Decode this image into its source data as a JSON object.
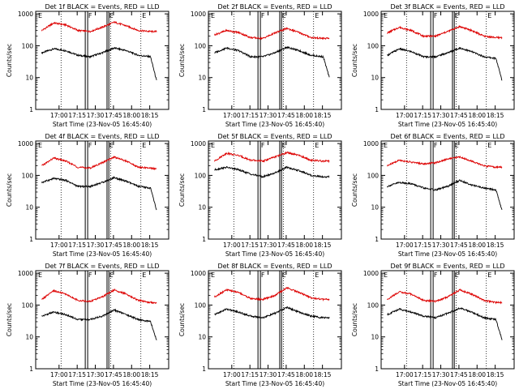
{
  "figure": {
    "x_axis_label": "Start Time (23-Nov-05 16:45:40)",
    "y_axis_label": "Counts/sec",
    "x_tick_labels": [
      "17:00",
      "17:15",
      "17:30",
      "17:45",
      "18:00",
      "18:15"
    ],
    "y_tick_labels": [
      "1",
      "10",
      "100",
      "1000"
    ],
    "flag_labels": [
      "E",
      "F",
      "E",
      "E"
    ],
    "colors": {
      "events": "#000000",
      "lld": "#dd0000",
      "axes": "#000000",
      "background": "#ffffff"
    },
    "grid": false,
    "y_scale": "log",
    "x_tick_offsets_minutes": [
      14.33,
      29.33,
      44.33,
      59.33,
      74.33,
      89.33
    ],
    "time_range_minutes": [
      -5,
      105
    ],
    "ylim": [
      1,
      1200
    ],
    "dotted_markers_minutes": [
      16,
      57,
      82
    ],
    "vertical_band_edges_minutes": [
      [
        36,
        38
      ],
      [
        54,
        55.5
      ]
    ]
  },
  "chart_data": [
    {
      "type": "line",
      "title": "Det 1f BLACK = Events, RED = LLD",
      "x_minutes": [
        0,
        10,
        20,
        30,
        40,
        50,
        60,
        70,
        80,
        90,
        95
      ],
      "series": [
        {
          "name": "Events",
          "color": "#000000",
          "values": [
            60,
            80,
            70,
            50,
            45,
            60,
            85,
            70,
            50,
            45,
            8
          ]
        },
        {
          "name": "LLD",
          "color": "#dd0000",
          "values": [
            300,
            520,
            450,
            300,
            280,
            380,
            550,
            420,
            300,
            280,
            280
          ]
        }
      ]
    },
    {
      "type": "line",
      "title": "Det 2f BLACK = Events, RED = LLD",
      "x_minutes": [
        0,
        10,
        20,
        30,
        40,
        50,
        60,
        70,
        80,
        90,
        95
      ],
      "series": [
        {
          "name": "Events",
          "color": "#000000",
          "values": [
            60,
            85,
            70,
            45,
            45,
            60,
            90,
            70,
            50,
            45,
            10
          ]
        },
        {
          "name": "LLD",
          "color": "#dd0000",
          "values": [
            220,
            300,
            260,
            180,
            170,
            250,
            350,
            260,
            180,
            170,
            170
          ]
        }
      ]
    },
    {
      "type": "line",
      "title": "Det 3f BLACK = Events, RED = LLD",
      "x_minutes": [
        0,
        10,
        20,
        30,
        40,
        50,
        60,
        70,
        80,
        90,
        95
      ],
      "series": [
        {
          "name": "Events",
          "color": "#000000",
          "values": [
            50,
            80,
            65,
            45,
            45,
            60,
            85,
            65,
            45,
            40,
            8
          ]
        },
        {
          "name": "LLD",
          "color": "#dd0000",
          "values": [
            250,
            380,
            300,
            200,
            200,
            280,
            400,
            300,
            200,
            180,
            180
          ]
        }
      ]
    },
    {
      "type": "line",
      "title": "Det 4f BLACK = Events, RED = LLD",
      "x_minutes": [
        0,
        10,
        20,
        30,
        40,
        50,
        60,
        70,
        80,
        90,
        95
      ],
      "series": [
        {
          "name": "Events",
          "color": "#000000",
          "values": [
            60,
            80,
            70,
            45,
            45,
            60,
            85,
            65,
            45,
            40,
            8
          ]
        },
        {
          "name": "LLD",
          "color": "#dd0000",
          "values": [
            200,
            350,
            280,
            180,
            170,
            250,
            380,
            280,
            180,
            170,
            160
          ]
        }
      ]
    },
    {
      "type": "line",
      "title": "Det 5f BLACK = Events, RED = LLD",
      "x_minutes": [
        0,
        10,
        20,
        30,
        40,
        50,
        60,
        70,
        80,
        90,
        95
      ],
      "series": [
        {
          "name": "Events",
          "color": "#000000",
          "values": [
            150,
            180,
            150,
            110,
            90,
            120,
            180,
            140,
            100,
            90,
            90
          ]
        },
        {
          "name": "LLD",
          "color": "#dd0000",
          "values": [
            280,
            500,
            420,
            300,
            280,
            380,
            520,
            420,
            300,
            280,
            280
          ]
        }
      ]
    },
    {
      "type": "line",
      "title": "Det 6f BLACK = Events, RED = LLD",
      "x_minutes": [
        0,
        10,
        20,
        30,
        40,
        50,
        60,
        70,
        80,
        90,
        95
      ],
      "series": [
        {
          "name": "Events",
          "color": "#000000",
          "values": [
            45,
            60,
            55,
            40,
            35,
            45,
            70,
            50,
            40,
            35,
            8
          ]
        },
        {
          "name": "LLD",
          "color": "#dd0000",
          "values": [
            200,
            300,
            260,
            230,
            250,
            330,
            380,
            280,
            200,
            180,
            180
          ]
        }
      ]
    },
    {
      "type": "line",
      "title": "Det 7f BLACK = Events, RED = LLD",
      "x_minutes": [
        0,
        10,
        20,
        30,
        40,
        50,
        60,
        70,
        80,
        90,
        95
      ],
      "series": [
        {
          "name": "Events",
          "color": "#000000",
          "values": [
            45,
            60,
            50,
            35,
            35,
            45,
            70,
            50,
            35,
            30,
            8
          ]
        },
        {
          "name": "LLD",
          "color": "#dd0000",
          "values": [
            150,
            280,
            220,
            140,
            130,
            180,
            300,
            220,
            140,
            120,
            120
          ]
        }
      ]
    },
    {
      "type": "line",
      "title": "Det 8f BLACK = Events, RED = LLD",
      "x_minutes": [
        0,
        10,
        20,
        30,
        40,
        50,
        60,
        70,
        80,
        90,
        95
      ],
      "series": [
        {
          "name": "Events",
          "color": "#000000",
          "values": [
            50,
            75,
            60,
            45,
            40,
            55,
            85,
            60,
            45,
            40,
            40
          ]
        },
        {
          "name": "LLD",
          "color": "#dd0000",
          "values": [
            180,
            300,
            250,
            160,
            150,
            200,
            350,
            250,
            170,
            150,
            150
          ]
        }
      ]
    },
    {
      "type": "line",
      "title": "Det 9f BLACK = Events, RED = LLD",
      "x_minutes": [
        0,
        10,
        20,
        30,
        40,
        50,
        60,
        70,
        80,
        90,
        95
      ],
      "series": [
        {
          "name": "Events",
          "color": "#000000",
          "values": [
            50,
            75,
            60,
            45,
            40,
            55,
            80,
            60,
            40,
            35,
            8
          ]
        },
        {
          "name": "LLD",
          "color": "#dd0000",
          "values": [
            150,
            260,
            220,
            140,
            130,
            180,
            300,
            220,
            140,
            120,
            120
          ]
        }
      ]
    }
  ]
}
